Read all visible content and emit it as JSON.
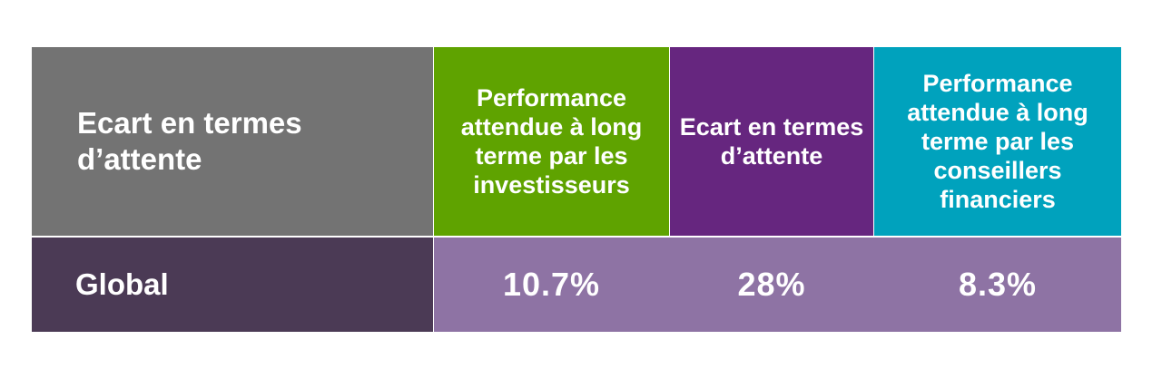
{
  "chart_data": {
    "type": "table",
    "title": "",
    "corner_header": "Ecart en termes d’attente",
    "columns": [
      {
        "label": "Performance attendue à long terme par les investisseurs",
        "color": "#5fa300"
      },
      {
        "label": "Ecart en termes d’attente",
        "color": "#66267f"
      },
      {
        "label": "Performance attendue à long terme par les conseillers financiers",
        "color": "#00a2bd"
      }
    ],
    "rows": [
      {
        "label": "Global",
        "values": [
          "10.7%",
          "28%",
          "8.3%"
        ]
      }
    ],
    "colors": {
      "corner_header_bg": "#737373",
      "row_label_bg": "#4b3a55",
      "data_row_bg": "#8e73a4"
    }
  }
}
